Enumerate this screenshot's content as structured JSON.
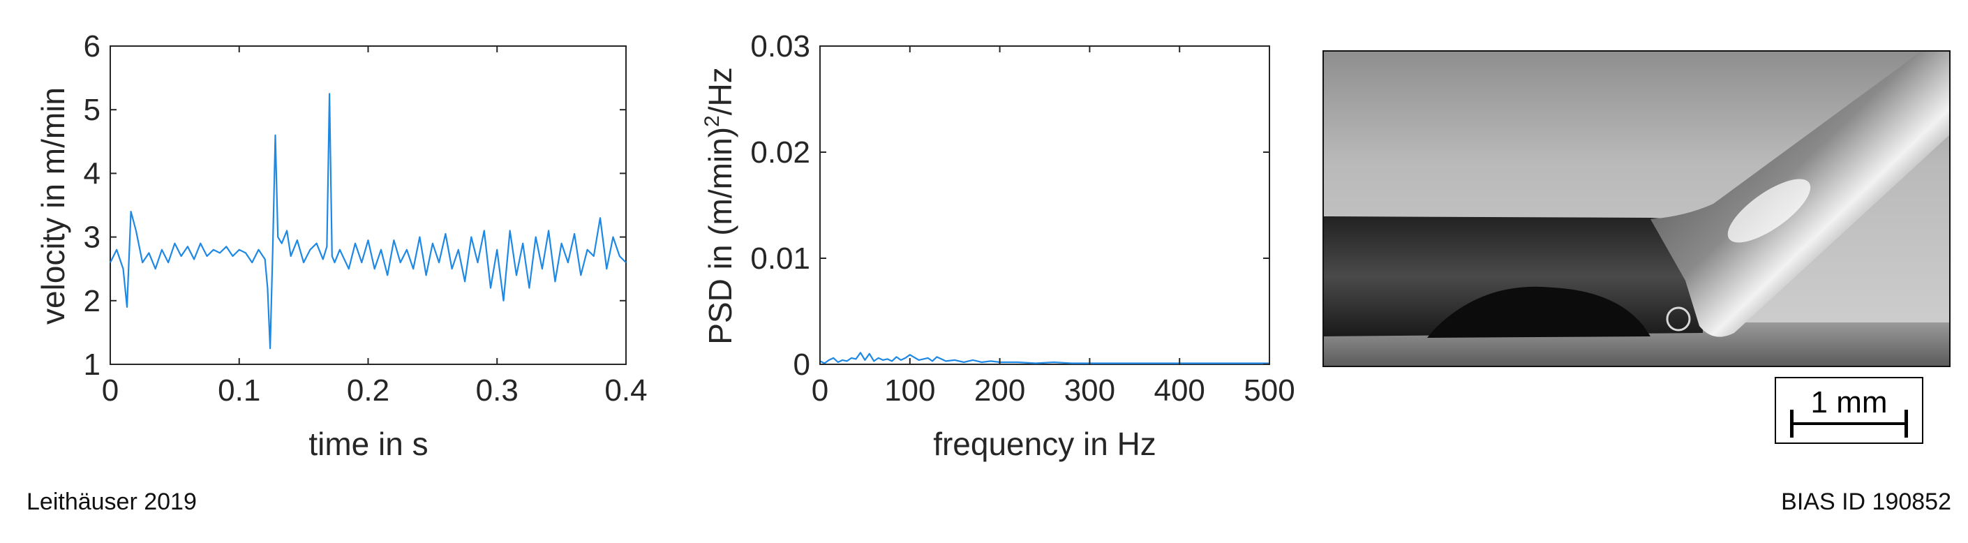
{
  "chart_data": [
    {
      "type": "line",
      "xlabel": "time in s",
      "ylabel": "velocity in m/min",
      "xlim": [
        0,
        0.4
      ],
      "ylim": [
        1,
        6
      ],
      "xticks": [
        0,
        0.1,
        0.2,
        0.3,
        0.4
      ],
      "xtick_labels": [
        "0",
        "0.1",
        "0.2",
        "0.3",
        "0.4"
      ],
      "yticks": [
        1,
        2,
        3,
        4,
        5,
        6
      ],
      "ytick_labels": [
        "1",
        "2",
        "3",
        "4",
        "5",
        "6"
      ],
      "grid": false,
      "color": "#1e88e5",
      "series": [
        {
          "x": [
            0,
            0.005,
            0.01,
            0.013,
            0.016,
            0.02,
            0.025,
            0.03,
            0.035,
            0.04,
            0.045,
            0.05,
            0.055,
            0.06,
            0.065,
            0.07,
            0.075,
            0.08,
            0.085,
            0.09,
            0.095,
            0.1,
            0.105,
            0.11,
            0.115,
            0.12,
            0.122,
            0.124,
            0.126,
            0.128,
            0.13,
            0.133,
            0.137,
            0.14,
            0.145,
            0.15,
            0.155,
            0.16,
            0.165,
            0.168,
            0.17,
            0.172,
            0.174,
            0.178,
            0.185,
            0.19,
            0.195,
            0.2,
            0.205,
            0.21,
            0.215,
            0.22,
            0.225,
            0.23,
            0.235,
            0.24,
            0.245,
            0.25,
            0.255,
            0.26,
            0.265,
            0.27,
            0.275,
            0.28,
            0.285,
            0.29,
            0.295,
            0.3,
            0.305,
            0.31,
            0.315,
            0.32,
            0.325,
            0.33,
            0.335,
            0.34,
            0.345,
            0.35,
            0.355,
            0.36,
            0.365,
            0.37,
            0.375,
            0.38,
            0.385,
            0.39,
            0.395,
            0.4
          ],
          "y": [
            2.6,
            2.8,
            2.5,
            1.9,
            3.4,
            3.1,
            2.6,
            2.75,
            2.5,
            2.8,
            2.6,
            2.9,
            2.7,
            2.85,
            2.65,
            2.9,
            2.7,
            2.8,
            2.75,
            2.85,
            2.7,
            2.8,
            2.75,
            2.6,
            2.8,
            2.65,
            2.2,
            1.25,
            2.8,
            4.6,
            3.0,
            2.9,
            3.1,
            2.7,
            2.95,
            2.6,
            2.8,
            2.9,
            2.65,
            2.85,
            5.25,
            2.7,
            2.6,
            2.8,
            2.5,
            2.9,
            2.6,
            2.95,
            2.5,
            2.8,
            2.4,
            2.95,
            2.6,
            2.8,
            2.5,
            3.0,
            2.4,
            2.9,
            2.6,
            3.05,
            2.5,
            2.8,
            2.3,
            3.0,
            2.6,
            3.1,
            2.2,
            2.8,
            2.0,
            3.1,
            2.4,
            2.9,
            2.2,
            3.0,
            2.5,
            3.1,
            2.3,
            2.9,
            2.6,
            3.05,
            2.4,
            2.8,
            2.7,
            3.3,
            2.5,
            3.0,
            2.7,
            2.6
          ]
        }
      ]
    },
    {
      "type": "line",
      "xlabel": "frequency in Hz",
      "ylabel": "PSD in (m/min)",
      "ylabel_sup": "2",
      "ylabel_suffix": "/Hz",
      "xlim": [
        0,
        500
      ],
      "ylim": [
        0,
        0.03
      ],
      "xticks": [
        0,
        100,
        200,
        300,
        400,
        500
      ],
      "xtick_labels": [
        "0",
        "100",
        "200",
        "300",
        "400",
        "500"
      ],
      "yticks": [
        0,
        0.01,
        0.02,
        0.03
      ],
      "ytick_labels": [
        "0",
        "0.01",
        "0.02",
        "0.03"
      ],
      "grid": false,
      "color": "#1e88e5",
      "series": [
        {
          "x": [
            0,
            5,
            10,
            15,
            20,
            25,
            30,
            35,
            40,
            45,
            50,
            55,
            60,
            65,
            70,
            75,
            80,
            85,
            90,
            95,
            100,
            110,
            120,
            125,
            130,
            140,
            150,
            160,
            170,
            180,
            190,
            200,
            220,
            240,
            260,
            280,
            300,
            320,
            340,
            360,
            380,
            400,
            420,
            440,
            460,
            480,
            500
          ],
          "y": [
            0.0003,
            0.0001,
            0.0004,
            0.0006,
            0.0002,
            0.0004,
            0.0003,
            0.0006,
            0.0005,
            0.0011,
            0.0004,
            0.001,
            0.0003,
            0.0006,
            0.0004,
            0.0005,
            0.0003,
            0.0007,
            0.0004,
            0.0006,
            0.0009,
            0.0004,
            0.0006,
            0.0003,
            0.0007,
            0.0003,
            0.0004,
            0.0002,
            0.0004,
            0.0002,
            0.0003,
            0.0002,
            0.0002,
            0.0001,
            0.0002,
            0.0001,
            0.0001,
            0.0001,
            0.0001,
            0.0001,
            0.0001,
            0.0001,
            0.0001,
            0.0001,
            0.0001,
            0.0001,
            0.0001
          ]
        }
      ]
    }
  ],
  "scale_bar": {
    "label": "1 mm"
  },
  "footer": {
    "left": "Leithäuser 2019",
    "right": "BIAS ID 190852"
  }
}
